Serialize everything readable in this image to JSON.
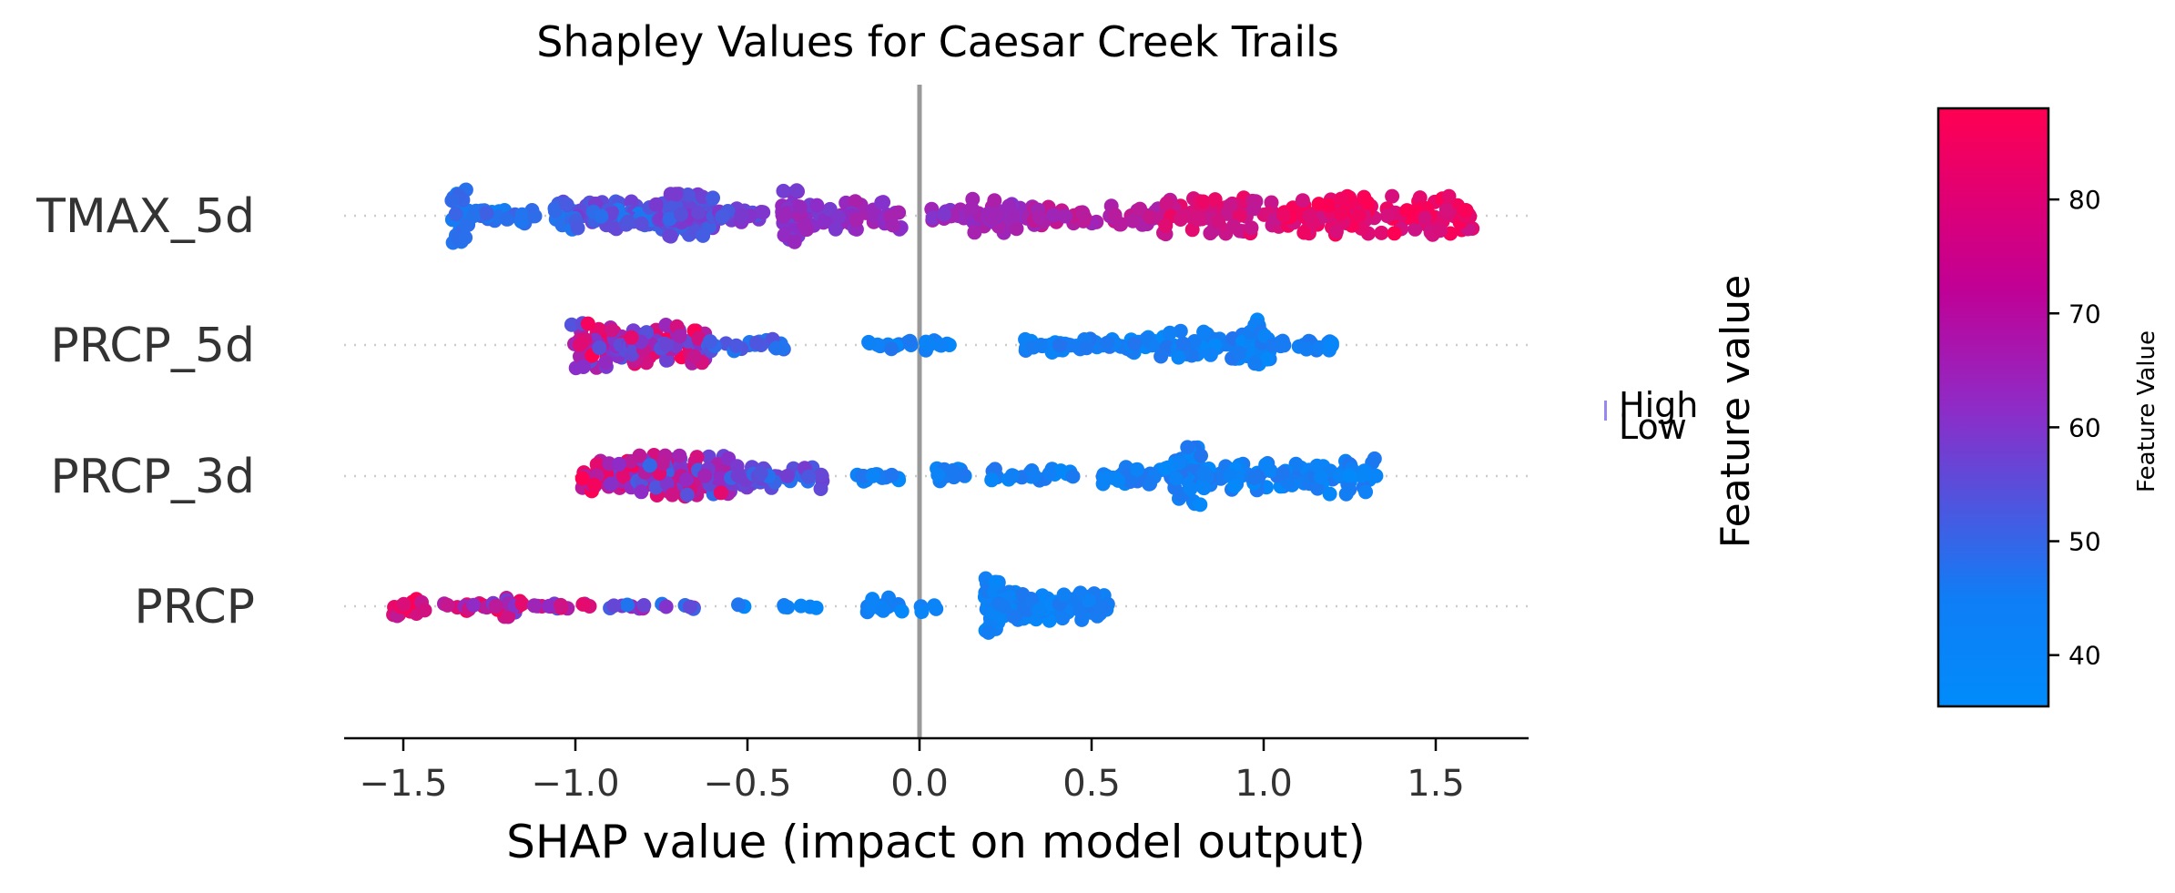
{
  "chart_data": {
    "type": "scatter",
    "subtype": "shap-beeswarm-summary",
    "title": "Shapley Values for Caesar Creek Trails",
    "xlabel": "SHAP value (impact on model output)",
    "xlim": [
      -1.67,
      1.77
    ],
    "xticks": [
      -1.5,
      -1.0,
      -0.5,
      0.0,
      0.5,
      1.0,
      1.5
    ],
    "xtick_labels": [
      "−1.5",
      "−1.0",
      "−0.5",
      "0.0",
      "0.5",
      "1.0",
      "1.5"
    ],
    "zero_line": 0.0,
    "grid": false,
    "features": [
      "TMAX_5d",
      "PRCP_5d",
      "PRCP_3d",
      "PRCP"
    ],
    "legend": {
      "high_label": "High",
      "low_label": "Low",
      "title": "Feature value"
    },
    "colorbar": {
      "label": "Feature Value",
      "range": [
        35.5,
        88
      ],
      "ticks": [
        40,
        50,
        60,
        70,
        80
      ],
      "colors": {
        "low": "#008bfb",
        "mid": "#8f2bc7",
        "high": "#ff0052"
      }
    },
    "series": [
      {
        "feature": "TMAX_5d",
        "clusters": [
          {
            "x": [
              -1.36,
              -1.31
            ],
            "max_spread": 0.42,
            "count": 36,
            "fv": [
              38,
              46
            ]
          },
          {
            "x": [
              -1.3,
              -1.1
            ],
            "max_spread": 0.12,
            "count": 30,
            "fv": [
              38,
              48
            ]
          },
          {
            "x": [
              -1.06,
              -0.74
            ],
            "max_spread": 0.22,
            "count": 95,
            "fv": [
              40,
              58
            ]
          },
          {
            "x": [
              -0.74,
              -0.6
            ],
            "max_spread": 0.34,
            "count": 75,
            "fv": [
              45,
              60
            ]
          },
          {
            "x": [
              -0.6,
              -0.45
            ],
            "max_spread": 0.12,
            "count": 22,
            "fv": [
              48,
              60
            ]
          },
          {
            "x": [
              -0.4,
              -0.35
            ],
            "max_spread": 0.42,
            "count": 30,
            "fv": [
              55,
              65
            ]
          },
          {
            "x": [
              -0.35,
              -0.05
            ],
            "max_spread": 0.22,
            "count": 55,
            "fv": [
              57,
              68
            ]
          },
          {
            "x": [
              0.03,
              0.18
            ],
            "max_spread": 0.1,
            "count": 18,
            "fv": [
              58,
              70
            ]
          },
          {
            "x": [
              0.15,
              0.33
            ],
            "max_spread": 0.26,
            "count": 40,
            "fv": [
              60,
              70
            ]
          },
          {
            "x": [
              0.33,
              0.7
            ],
            "max_spread": 0.15,
            "count": 50,
            "fv": [
              65,
              75
            ]
          },
          {
            "x": [
              0.7,
              1.05
            ],
            "max_spread": 0.28,
            "count": 80,
            "fv": [
              72,
              84
            ]
          },
          {
            "x": [
              1.05,
              1.62
            ],
            "max_spread": 0.3,
            "count": 130,
            "fv": [
              76,
              88
            ]
          }
        ]
      },
      {
        "feature": "PRCP_5d",
        "clusters": [
          {
            "x": [
              -1.02,
              -0.85
            ],
            "max_spread": 0.36,
            "count": 55,
            "fv": [
              50,
              88
            ]
          },
          {
            "x": [
              -0.85,
              -0.62
            ],
            "max_spread": 0.36,
            "count": 65,
            "fv": [
              48,
              88
            ]
          },
          {
            "x": [
              -0.62,
              -0.38
            ],
            "max_spread": 0.1,
            "count": 25,
            "fv": [
              40,
              52
            ]
          },
          {
            "x": [
              -0.16,
              0.1
            ],
            "max_spread": 0.08,
            "count": 22,
            "fv": [
              36,
              42
            ]
          },
          {
            "x": [
              0.3,
              0.7
            ],
            "max_spread": 0.12,
            "count": 60,
            "fv": [
              36,
              42
            ]
          },
          {
            "x": [
              0.7,
              1.0
            ],
            "max_spread": 0.22,
            "count": 65,
            "fv": [
              36,
              42
            ]
          },
          {
            "x": [
              0.96,
              1.02
            ],
            "max_spread": 0.42,
            "count": 25,
            "fv": [
              36,
              41
            ]
          },
          {
            "x": [
              1.02,
              1.2
            ],
            "max_spread": 0.1,
            "count": 20,
            "fv": [
              36,
              41
            ]
          }
        ]
      },
      {
        "feature": "PRCP_3d",
        "clusters": [
          {
            "x": [
              -0.98,
              -0.82
            ],
            "max_spread": 0.24,
            "count": 40,
            "fv": [
              55,
              88
            ]
          },
          {
            "x": [
              -0.82,
              -0.55
            ],
            "max_spread": 0.32,
            "count": 110,
            "fv": [
              45,
              82
            ]
          },
          {
            "x": [
              -0.55,
              -0.28
            ],
            "max_spread": 0.2,
            "count": 55,
            "fv": [
              42,
              58
            ]
          },
          {
            "x": [
              -0.2,
              -0.05
            ],
            "max_spread": 0.08,
            "count": 15,
            "fv": [
              36,
              42
            ]
          },
          {
            "x": [
              0.05,
              0.45
            ],
            "max_spread": 0.12,
            "count": 40,
            "fv": [
              36,
              42
            ]
          },
          {
            "x": [
              0.5,
              0.74
            ],
            "max_spread": 0.14,
            "count": 35,
            "fv": [
              36,
              42
            ]
          },
          {
            "x": [
              0.74,
              0.82
            ],
            "max_spread": 0.44,
            "count": 40,
            "fv": [
              36,
              42
            ]
          },
          {
            "x": [
              0.82,
              1.15
            ],
            "max_spread": 0.22,
            "count": 60,
            "fv": [
              36,
              42
            ]
          },
          {
            "x": [
              1.15,
              1.35
            ],
            "max_spread": 0.28,
            "count": 35,
            "fv": [
              36,
              42
            ]
          }
        ]
      },
      {
        "feature": "PRCP",
        "clusters": [
          {
            "x": [
              -1.53,
              -1.45
            ],
            "max_spread": 0.16,
            "count": 18,
            "fv": [
              70,
              88
            ]
          },
          {
            "x": [
              -1.45,
              -1.24
            ],
            "max_spread": 0.07,
            "count": 15,
            "fv": [
              60,
              88
            ]
          },
          {
            "x": [
              -1.24,
              -1.16
            ],
            "max_spread": 0.2,
            "count": 18,
            "fv": [
              55,
              88
            ]
          },
          {
            "x": [
              -1.16,
              -0.95
            ],
            "max_spread": 0.07,
            "count": 14,
            "fv": [
              50,
              85
            ]
          },
          {
            "x": [
              -0.95,
              -0.65
            ],
            "max_spread": 0.05,
            "count": 14,
            "fv": [
              40,
              70
            ]
          },
          {
            "x": [
              -0.55,
              -0.3
            ],
            "max_spread": 0.03,
            "count": 8,
            "fv": [
              36,
              42
            ]
          },
          {
            "x": [
              -0.16,
              0.06
            ],
            "max_spread": 0.14,
            "count": 20,
            "fv": [
              36,
              40
            ]
          },
          {
            "x": [
              0.19,
              0.23
            ],
            "max_spread": 0.46,
            "count": 45,
            "fv": [
              36,
              40
            ]
          },
          {
            "x": [
              0.23,
              0.55
            ],
            "max_spread": 0.22,
            "count": 110,
            "fv": [
              36,
              41
            ]
          }
        ]
      }
    ]
  }
}
